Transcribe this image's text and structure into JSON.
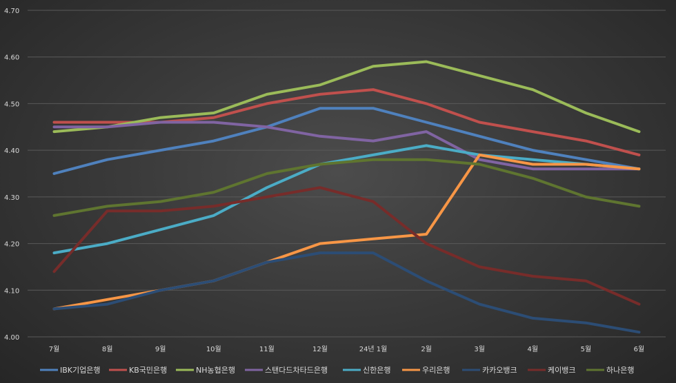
{
  "chart_data": {
    "type": "line",
    "title": "",
    "xlabel": "",
    "ylabel": "",
    "ylim": [
      4.0,
      4.7
    ],
    "yticks": [
      "4.00",
      "4.10",
      "4.20",
      "4.30",
      "4.40",
      "4.50",
      "4.60",
      "4.70"
    ],
    "grid": true,
    "legend_position": "bottom",
    "categories": [
      "7월",
      "8월",
      "9월",
      "10월",
      "11월",
      "12월",
      "24년 1월",
      "2월",
      "3월",
      "4월",
      "5월",
      "6월"
    ],
    "series": [
      {
        "name": "IBK기업은행",
        "color": "#4f81bd",
        "values": [
          4.35,
          4.38,
          4.4,
          4.42,
          4.45,
          4.49,
          4.49,
          4.46,
          4.43,
          4.4,
          4.38,
          4.36
        ]
      },
      {
        "name": "KB국민은행",
        "color": "#c0504d",
        "values": [
          4.46,
          4.46,
          4.46,
          4.47,
          4.5,
          4.52,
          4.53,
          4.5,
          4.46,
          4.44,
          4.42,
          4.39
        ]
      },
      {
        "name": "NH농협은행",
        "color": "#9bbb59",
        "values": [
          4.44,
          4.45,
          4.47,
          4.48,
          4.52,
          4.54,
          4.58,
          4.59,
          4.56,
          4.53,
          4.48,
          4.44
        ]
      },
      {
        "name": "스탠다드차타드은행",
        "color": "#8064a2",
        "values": [
          4.45,
          4.45,
          4.46,
          4.46,
          4.45,
          4.43,
          4.42,
          4.44,
          4.38,
          4.36,
          4.36,
          4.36
        ]
      },
      {
        "name": "신한은행",
        "color": "#4bacc6",
        "values": [
          4.18,
          4.2,
          4.23,
          4.26,
          4.32,
          4.37,
          4.39,
          4.41,
          4.39,
          4.38,
          4.37,
          4.36
        ]
      },
      {
        "name": "우리은행",
        "color": "#f79646",
        "values": [
          4.06,
          4.08,
          4.1,
          4.12,
          4.16,
          4.2,
          4.21,
          4.22,
          4.39,
          4.37,
          4.37,
          4.36
        ]
      },
      {
        "name": "카카오뱅크",
        "color": "#2c4d75",
        "values": [
          4.06,
          4.07,
          4.1,
          4.12,
          4.16,
          4.18,
          4.18,
          4.12,
          4.07,
          4.04,
          4.03,
          4.01
        ]
      },
      {
        "name": "케이뱅크",
        "color": "#772c2a",
        "values": [
          4.14,
          4.27,
          4.27,
          4.28,
          4.3,
          4.32,
          4.29,
          4.2,
          4.15,
          4.13,
          4.12,
          4.07
        ]
      },
      {
        "name": "하나은행",
        "color": "#5f7530",
        "values": [
          4.26,
          4.28,
          4.29,
          4.31,
          4.35,
          4.37,
          4.38,
          4.38,
          4.37,
          4.34,
          4.3,
          4.28
        ]
      }
    ]
  }
}
